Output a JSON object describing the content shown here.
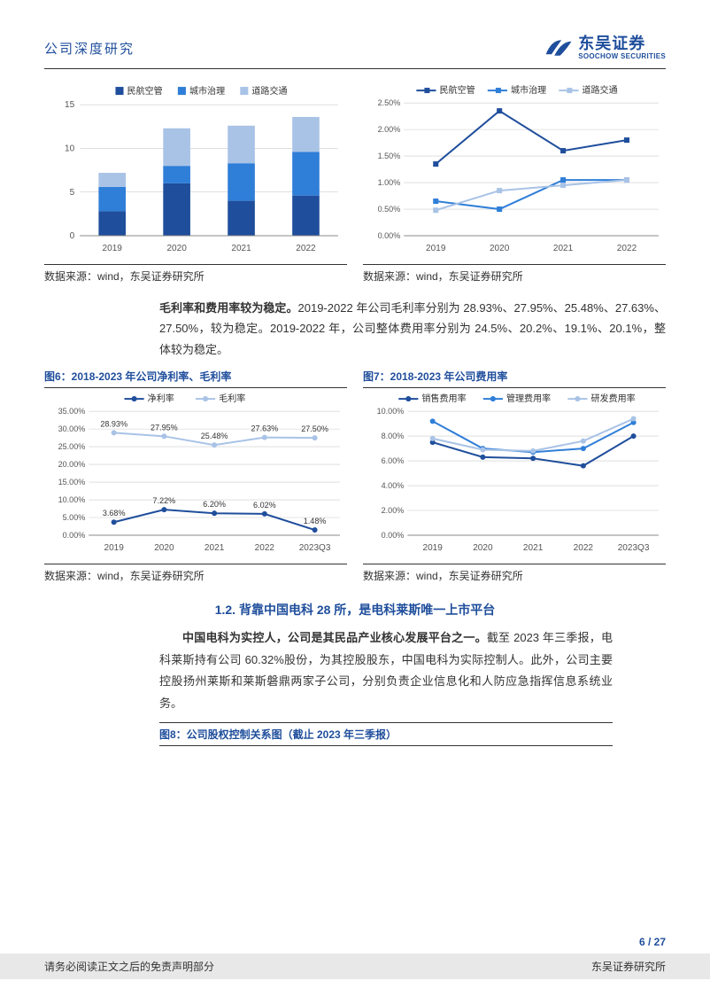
{
  "header": {
    "doc_title": "公司深度研究",
    "logo_cn": "东吴证券",
    "logo_en": "SOOCHOW SECURITIES"
  },
  "chart_bar": {
    "type": "stacked-bar",
    "categories": [
      "2019",
      "2020",
      "2021",
      "2022"
    ],
    "series": [
      {
        "name": "民航空管",
        "color": "#1f4e9c",
        "values": [
          2.8,
          6.0,
          4.0,
          4.6
        ]
      },
      {
        "name": "城市治理",
        "color": "#2f7ed8",
        "values": [
          2.8,
          2.0,
          4.3,
          5.0
        ]
      },
      {
        "name": "道路交通",
        "color": "#a9c3e6",
        "values": [
          1.6,
          4.3,
          4.3,
          4.0
        ]
      }
    ],
    "ylim": [
      0,
      15
    ],
    "ytick": 5,
    "background": "#ffffff",
    "grid_color": "#cccccc",
    "bar_width": 0.42,
    "legend_marker": "square",
    "source": "数据来源：wind，东吴证券研究所"
  },
  "chart_line1": {
    "type": "line",
    "categories": [
      "2019",
      "2020",
      "2021",
      "2022"
    ],
    "series": [
      {
        "name": "民航空管",
        "color": "#1f4e9c",
        "dash": "none",
        "values": [
          1.35,
          2.35,
          1.6,
          1.8
        ]
      },
      {
        "name": "城市治理",
        "color": "#2f7ed8",
        "dash": "none",
        "values": [
          0.65,
          0.5,
          1.05,
          1.05
        ]
      },
      {
        "name": "道路交通",
        "color": "#a9c3e6",
        "dash": "none",
        "values": [
          0.48,
          0.85,
          0.95,
          1.05
        ]
      }
    ],
    "ylim": [
      0,
      2.5
    ],
    "ytick": 0.5,
    "y_format": "pct2",
    "background": "#ffffff",
    "grid_color": "#cccccc",
    "marker": "square",
    "marker_size": 5,
    "source": "数据来源：wind，东吴证券研究所"
  },
  "para1": {
    "bold": "毛利率和费用率较为稳定。",
    "rest": "2019-2022 年公司毛利率分别为 28.93%、27.95%、25.48%、27.63%、27.50%，较为稳定。2019-2022 年，公司整体费用率分别为 24.5%、20.2%、19.1%、20.1%，整体较为稳定。"
  },
  "fig6": {
    "label": "图6：2018-2023 年公司净利率、毛利率"
  },
  "fig7": {
    "label": "图7：2018-2023 年公司费用率"
  },
  "chart_line2": {
    "type": "line",
    "categories": [
      "2019",
      "2020",
      "2021",
      "2022",
      "2023Q3"
    ],
    "series": [
      {
        "name": "净利率",
        "color": "#1f4e9c",
        "values": [
          3.68,
          7.22,
          6.2,
          6.02,
          1.48
        ],
        "labels": [
          "3.68%",
          "7.22%",
          "6.20%",
          "6.02%",
          "1.48%"
        ]
      },
      {
        "name": "毛利率",
        "color": "#a9c3e6",
        "values": [
          28.93,
          27.95,
          25.48,
          27.63,
          27.5
        ],
        "labels": [
          "28.93%",
          "27.95%",
          "25.48%",
          "27.63%",
          "27.50%"
        ]
      }
    ],
    "ylim": [
      0,
      35
    ],
    "ytick": 5,
    "y_format": "pct2",
    "background": "#ffffff",
    "grid_color": "#cccccc",
    "marker": "circle",
    "marker_size": 4,
    "source": "数据来源：wind，东吴证券研究所"
  },
  "chart_line3": {
    "type": "line",
    "categories": [
      "2019",
      "2020",
      "2021",
      "2022",
      "2023Q3"
    ],
    "series": [
      {
        "name": "销售费用率",
        "color": "#1f4e9c",
        "values": [
          7.5,
          6.3,
          6.2,
          5.6,
          8.0
        ]
      },
      {
        "name": "管理费用率",
        "color": "#2f7ed8",
        "values": [
          9.2,
          7.0,
          6.7,
          7.0,
          9.1
        ]
      },
      {
        "name": "研发费用率",
        "color": "#a9c3e6",
        "values": [
          7.8,
          6.9,
          6.8,
          7.6,
          9.4
        ]
      }
    ],
    "ylim": [
      0,
      10
    ],
    "ytick": 2,
    "y_format": "pct2",
    "background": "#ffffff",
    "grid_color": "#cccccc",
    "marker": "circle",
    "marker_size": 4,
    "source": "数据来源：wind，东吴证券研究所"
  },
  "section12": {
    "title": "1.2.  背靠中国电科 28 所，是电科莱斯唯一上市平台"
  },
  "para2": {
    "bold": "中国电科为实控人，公司是其民品产业核心发展平台之一。",
    "rest": "截至 2023 年三季报，电科莱斯持有公司 60.32%股份，为其控股股东，中国电科为实际控制人。此外，公司主要控股扬州莱斯和莱斯磐鼎两家子公司，分别负责企业信息化和人防应急指挥信息系统业务。"
  },
  "fig8": {
    "label": "图8：公司股权控制关系图（截止 2023 年三季报）"
  },
  "footer": {
    "page": "6 / 27",
    "disclaimer": "请务必阅读正文之后的免责声明部分",
    "institute": "东吴证券研究所"
  },
  "colors": {
    "brand": "#1f4e9c"
  }
}
